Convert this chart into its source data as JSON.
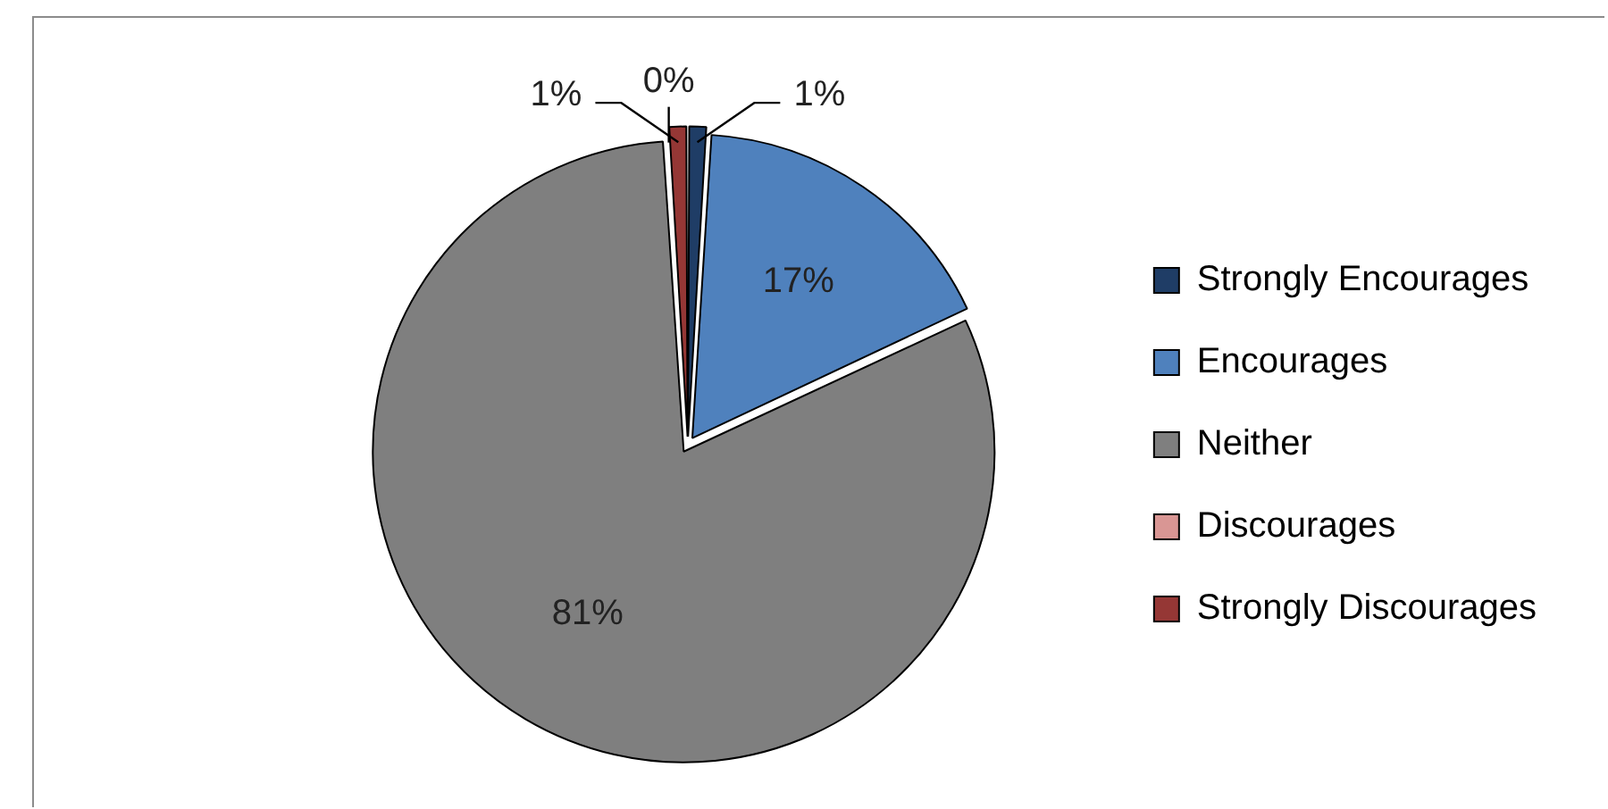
{
  "chart_data": {
    "type": "pie",
    "categories": [
      "Strongly Encourages",
      "Encourages",
      "Neither",
      "Discourages",
      "Strongly Discourages"
    ],
    "values": [
      1,
      17,
      81,
      0,
      1
    ],
    "colors": [
      "#1f3d66",
      "#4f81bd",
      "#7f7f7f",
      "#d99694",
      "#953735"
    ],
    "value_labels": [
      "1%",
      "17%",
      "81%",
      "0%",
      "1%"
    ],
    "legend": "right"
  }
}
